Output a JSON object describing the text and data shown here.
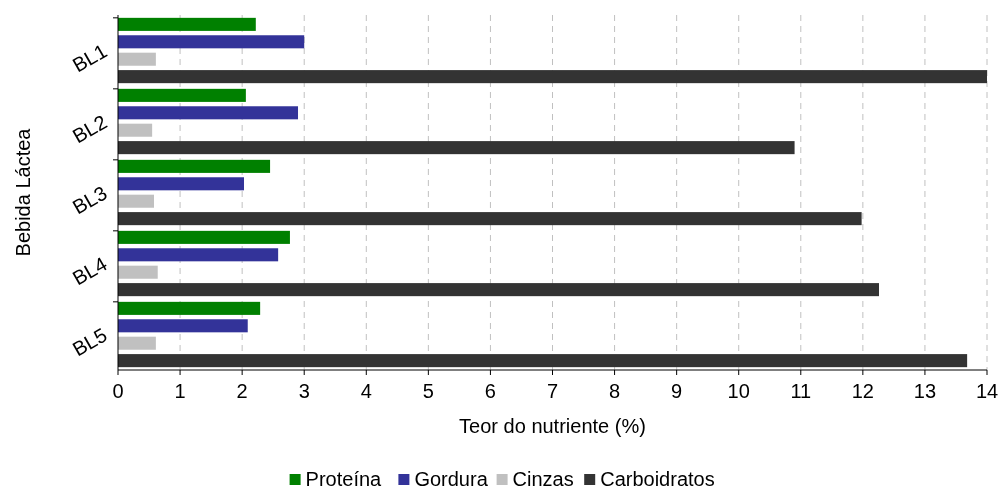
{
  "chart_data": {
    "type": "bar",
    "orientation": "horizontal",
    "ylabel": "Bebida Láctea",
    "xlabel": "Teor do nutriente (%)",
    "categories": [
      "BL1",
      "BL2",
      "BL3",
      "BL4",
      "BL5"
    ],
    "series": [
      {
        "name": "Proteína",
        "color": "#008000",
        "values": [
          2.22,
          2.06,
          2.45,
          2.77,
          2.29
        ]
      },
      {
        "name": "Gordura",
        "color": "#333399",
        "values": [
          3.0,
          2.9,
          2.03,
          2.58,
          2.09
        ]
      },
      {
        "name": "Cinzas",
        "color": "#c0c0c0",
        "values": [
          0.61,
          0.55,
          0.58,
          0.64,
          0.61
        ]
      },
      {
        "name": "Carboidratos",
        "color": "#333333",
        "values": [
          14.0,
          10.9,
          11.98,
          12.26,
          13.68
        ]
      }
    ],
    "xlim": [
      0,
      14
    ],
    "xticks": [
      0,
      1,
      2,
      3,
      4,
      5,
      6,
      7,
      8,
      9,
      10,
      11,
      12,
      13,
      14
    ],
    "grid": "x",
    "legend": "bottom"
  }
}
